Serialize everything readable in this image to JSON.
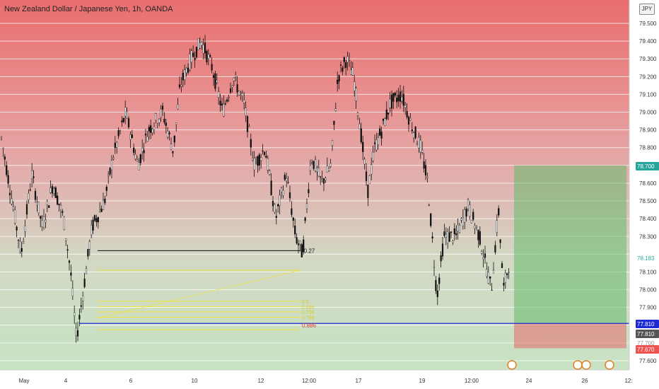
{
  "chart_title": "New Zealand Dollar / Japanese Yen, 1h, OANDA",
  "currency_badge": "JPY",
  "chart_data": {
    "type": "candlestick",
    "ylim": [
      77.57,
      79.62
    ],
    "y_ticks": [
      "79.500",
      "79.400",
      "79.300",
      "79.200",
      "79.100",
      "79.000",
      "78.900",
      "78.800",
      "78.600",
      "78.500",
      "78.400",
      "78.300",
      "78.100",
      "78.000",
      "77.900",
      "77.600"
    ],
    "x_ticks": [
      "May",
      "4",
      "6",
      "10",
      "12",
      "12:00",
      "17",
      "19",
      "12:00",
      "24",
      "26",
      "12:"
    ],
    "price_badges": [
      {
        "label": "78.700",
        "value": 78.7,
        "color": "#26a69a"
      },
      {
        "label": "78.183",
        "value": 78.183,
        "color": "#ffffff",
        "text_color": "#26a69a"
      },
      {
        "label": "77.810",
        "value": 77.81,
        "color": "#1e2ad6"
      },
      {
        "label": "77.810",
        "value": 77.81,
        "color": "#555555"
      },
      {
        "label": "77.700",
        "value": 77.7,
        "color": "#ffffff",
        "text_color": "#999999"
      },
      {
        "label": "77.670",
        "value": 77.67,
        "color": "#ef5350"
      }
    ],
    "horizontal_line": {
      "value": 77.81,
      "color": "#1e2ad6"
    },
    "position": {
      "entry": 77.81,
      "target": 78.7,
      "stop": 77.67
    },
    "fib_annotation": {
      "black_line_label": "-0.27",
      "red_label": "0.886",
      "level_labels": [
        "0.5",
        "0.618",
        "0.705",
        "0.786"
      ]
    },
    "anchor_points": [
      [
        0,
        78.9
      ],
      [
        15,
        78.55
      ],
      [
        30,
        78.2
      ],
      [
        45,
        78.65
      ],
      [
        60,
        78.35
      ],
      [
        75,
        78.6
      ],
      [
        90,
        78.4
      ],
      [
        100,
        78.1
      ],
      [
        108,
        77.72
      ],
      [
        118,
        78.0
      ],
      [
        130,
        78.35
      ],
      [
        148,
        78.5
      ],
      [
        160,
        78.75
      ],
      [
        178,
        79.0
      ],
      [
        195,
        78.7
      ],
      [
        210,
        78.9
      ],
      [
        230,
        79.0
      ],
      [
        245,
        78.78
      ],
      [
        255,
        79.15
      ],
      [
        270,
        79.3
      ],
      [
        285,
        79.4
      ],
      [
        300,
        79.25
      ],
      [
        315,
        79.0
      ],
      [
        330,
        79.2
      ],
      [
        345,
        79.05
      ],
      [
        360,
        78.7
      ],
      [
        375,
        78.8
      ],
      [
        390,
        78.4
      ],
      [
        405,
        78.65
      ],
      [
        418,
        78.3
      ],
      [
        428,
        78.2
      ],
      [
        440,
        78.75
      ],
      [
        455,
        78.6
      ],
      [
        468,
        78.7
      ],
      [
        478,
        79.2
      ],
      [
        490,
        79.3
      ],
      [
        500,
        79.2
      ],
      [
        510,
        78.9
      ],
      [
        520,
        78.55
      ],
      [
        530,
        78.8
      ],
      [
        540,
        78.9
      ],
      [
        552,
        79.05
      ],
      [
        568,
        79.1
      ],
      [
        580,
        78.95
      ],
      [
        595,
        78.8
      ],
      [
        605,
        78.6
      ],
      [
        618,
        77.96
      ],
      [
        628,
        78.3
      ],
      [
        645,
        78.3
      ],
      [
        662,
        78.47
      ],
      [
        678,
        78.3
      ],
      [
        695,
        78.0
      ],
      [
        705,
        78.45
      ],
      [
        712,
        78.0
      ],
      [
        720,
        78.15
      ]
    ],
    "candles": []
  }
}
